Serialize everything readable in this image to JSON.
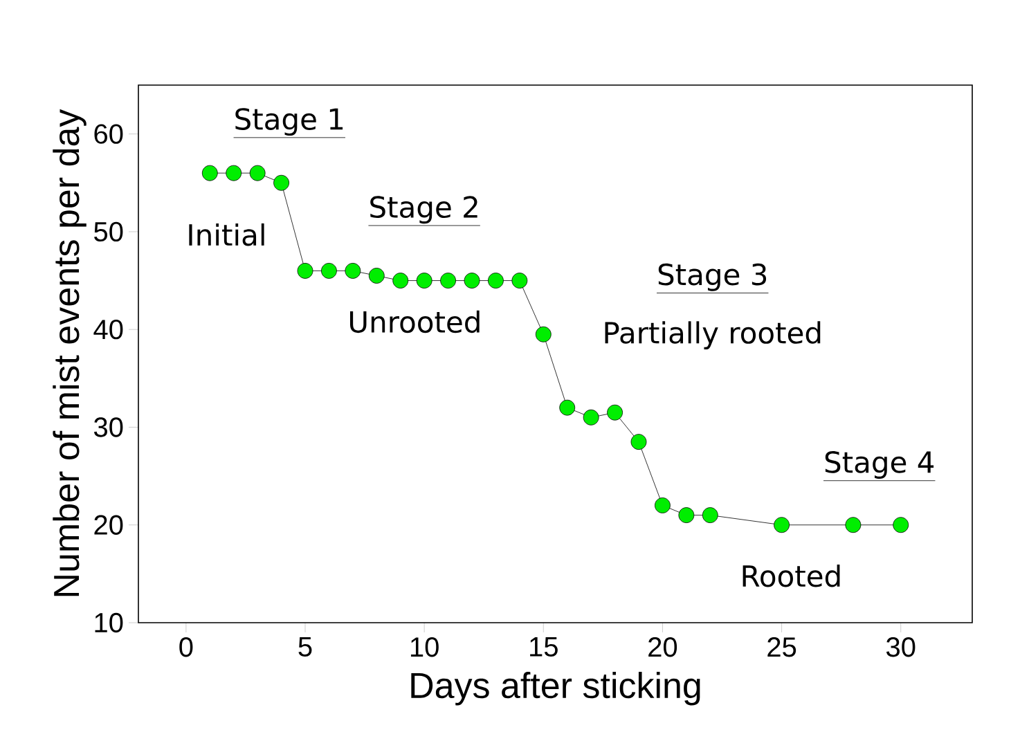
{
  "chart_data": {
    "type": "line",
    "xlabel": "Days after sticking",
    "ylabel": "Number of mist events per day",
    "x": [
      1,
      2,
      3,
      4,
      5,
      6,
      7,
      8,
      9,
      10,
      11,
      12,
      13,
      14,
      15,
      16,
      17,
      18,
      19,
      20,
      21,
      22,
      25,
      28,
      30
    ],
    "series": [
      {
        "color": "#00ee00",
        "values": [
          56,
          56,
          56,
          55,
          46,
          46,
          46,
          45.5,
          45,
          45,
          45,
          45,
          45,
          45,
          39.5,
          32,
          31,
          31.5,
          28.5,
          22,
          21,
          21,
          20,
          20,
          20
        ]
      }
    ],
    "xlim": [
      -2,
      33
    ],
    "ylim": [
      10,
      65
    ],
    "xticks": [
      0,
      5,
      10,
      15,
      20,
      25,
      30
    ],
    "yticks": [
      10,
      20,
      30,
      40,
      50,
      60
    ],
    "marker": "circle",
    "line_style": "solid",
    "grid": false,
    "annotations": [
      "Stage 1",
      "Initial",
      "Stage 2",
      "Unrooted",
      "Stage 3",
      "Partially rooted",
      "Stage 4",
      "Rooted"
    ]
  }
}
